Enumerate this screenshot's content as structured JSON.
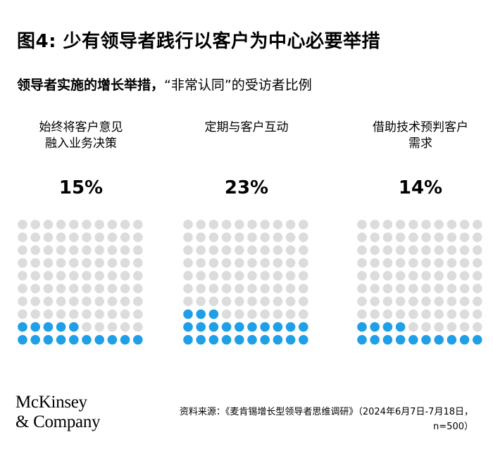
{
  "title": "图4: 少有领导者践行以客户为中心必要举措",
  "subtitle_bold": "领导者实施的增长举措，",
  "subtitle_rest": "“非常认同”的受访者比例",
  "colors": {
    "filled": "#1F9FE8",
    "empty": "#DCDCDC"
  },
  "chart_data": [
    {
      "type": "waffle",
      "label_line1": "始终将客户意见",
      "label_line2": "融入业务决策",
      "value_label": "15%",
      "value": 15,
      "total": 100
    },
    {
      "type": "waffle",
      "label_line1": "定期与客户互动",
      "label_line2": "",
      "value_label": "23%",
      "value": 23,
      "total": 100
    },
    {
      "type": "waffle",
      "label_line1": "借助技术预判客户",
      "label_line2": "需求",
      "value_label": "14%",
      "value": 14,
      "total": 100
    }
  ],
  "logo_line1": "McKinsey",
  "logo_line2": "& Company",
  "source_line1": "资料来源：《麦肯锡增长型领导者思维调研》（2024年6月7日-7月18日，",
  "source_line2": "n=500）"
}
